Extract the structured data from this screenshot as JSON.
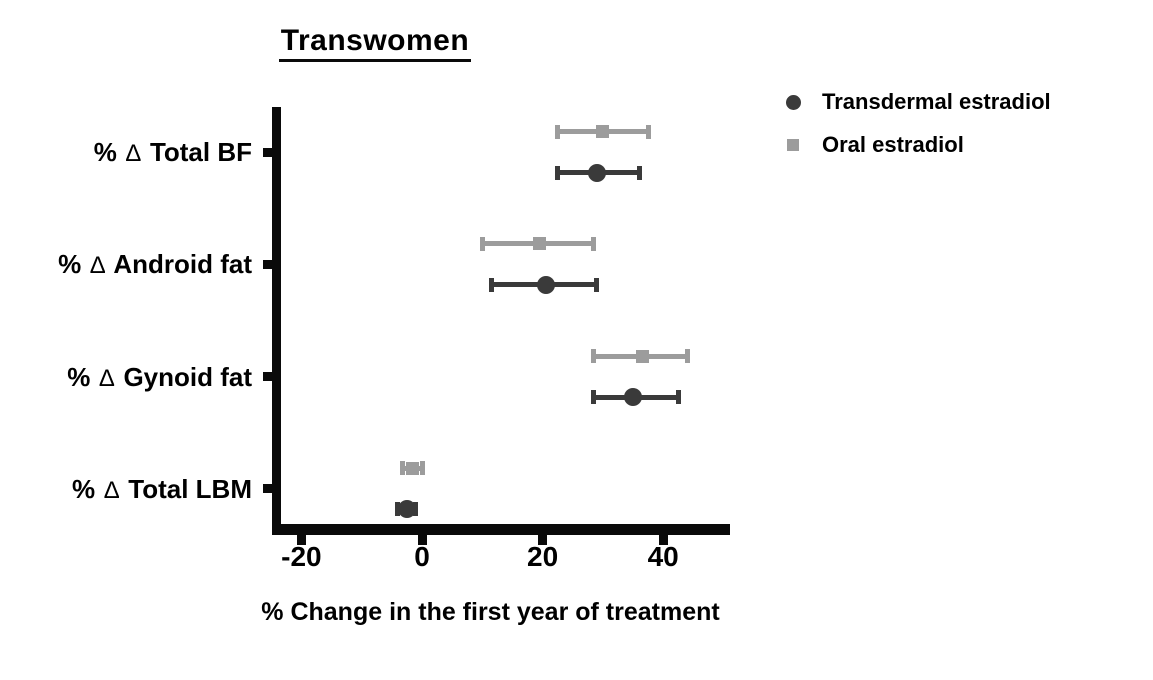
{
  "title": "Transwomen",
  "x_axis_label": "% Change in the first year of treatment",
  "legend": {
    "position": "top-right",
    "items": [
      {
        "label": "Transdermal estradiol",
        "marker": "circle-icon",
        "color": "#3a3a3a"
      },
      {
        "label": "Oral estradiol",
        "marker": "square-icon",
        "color": "#9c9c9c"
      }
    ]
  },
  "colors": {
    "axis": "#0a0a0a",
    "transdermal_series": "#3a3a3a",
    "oral_series": "#9c9c9c",
    "background": "#ffffff"
  },
  "chart_data": {
    "type": "scatter",
    "subtype": "horizontal dot-and-error (forest-style) plot, mean with error bars",
    "title": "Transwomen",
    "xlabel": "% Change in the first year of treatment",
    "ylabel": "",
    "grid": false,
    "legend_position": "top-right",
    "categories": [
      "% ∆ Total BF",
      "% ∆ Android fat",
      "% ∆ Gynoid fat",
      "% ∆ Total LBM"
    ],
    "x_ticks": [
      -20,
      0,
      20,
      40
    ],
    "xlim": [
      -25,
      51
    ],
    "series": [
      {
        "name": "Oral estradiol",
        "marker": "square",
        "color": "#9c9c9c",
        "row_offset": "above category tick",
        "points": [
          {
            "category": "% ∆ Total BF",
            "mean": 30,
            "lo": 22.5,
            "hi": 37.5
          },
          {
            "category": "% ∆ Android fat",
            "mean": 19.5,
            "lo": 10,
            "hi": 28.5
          },
          {
            "category": "% ∆ Gynoid fat",
            "mean": 36.5,
            "lo": 28.5,
            "hi": 44
          },
          {
            "category": "% ∆ Total LBM",
            "mean": -1.5,
            "lo": -3.2,
            "hi": 0
          }
        ]
      },
      {
        "name": "Transdermal estradiol",
        "marker": "circle",
        "color": "#3a3a3a",
        "row_offset": "below category tick",
        "points": [
          {
            "category": "% ∆ Total BF",
            "mean": 29,
            "lo": 22.5,
            "hi": 36
          },
          {
            "category": "% ∆ Android fat",
            "mean": 20.5,
            "lo": 11.5,
            "hi": 29
          },
          {
            "category": "% ∆ Gynoid fat",
            "mean": 35,
            "lo": 28.5,
            "hi": 42.5
          },
          {
            "category": "% ∆ Total LBM",
            "mean": -2.5,
            "lo": -4,
            "hi": -1
          }
        ]
      }
    ]
  }
}
